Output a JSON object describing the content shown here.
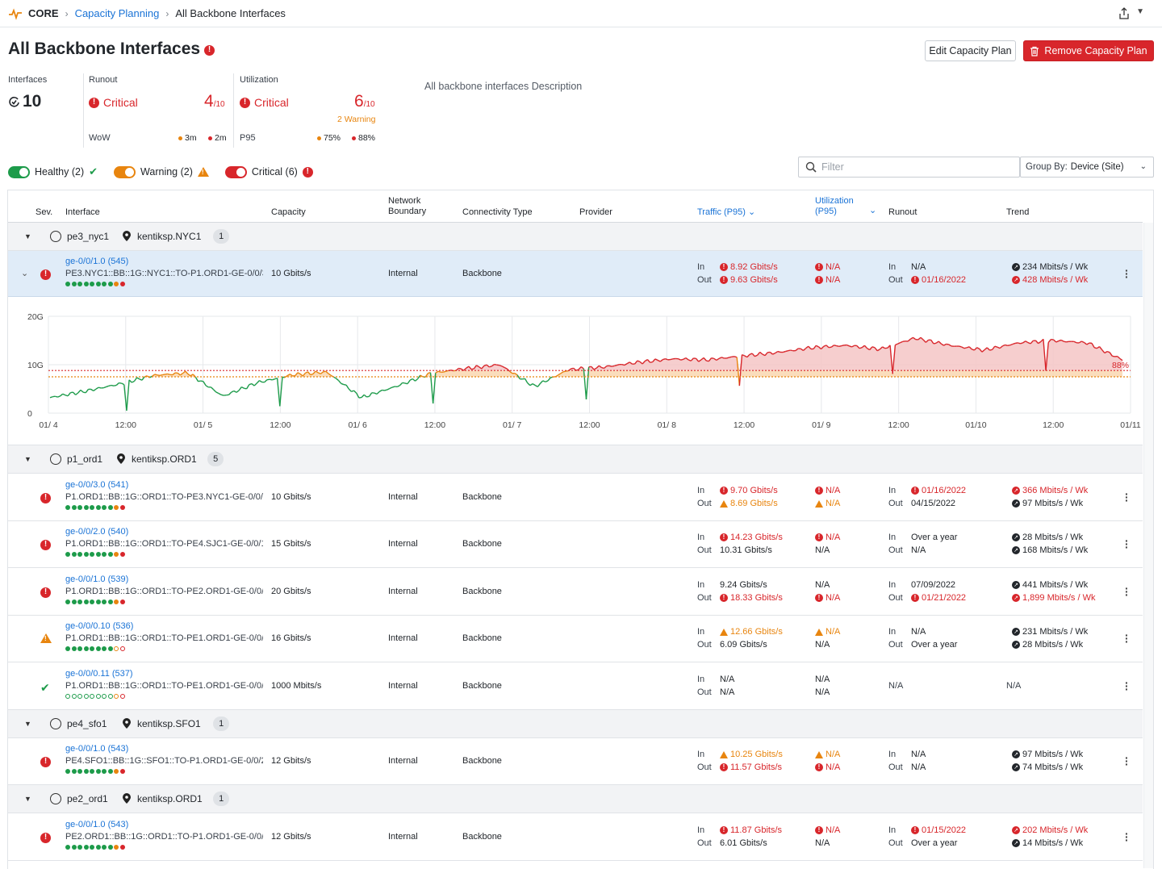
{
  "breadcrumb": {
    "root": "CORE",
    "section": "Capacity Planning",
    "current": "All Backbone Interfaces"
  },
  "header": {
    "title": "All Backbone Interfaces",
    "edit_button": "Edit Capacity Plan",
    "remove_button": "Remove Capacity Plan",
    "description": "All backbone interfaces Description"
  },
  "summary": {
    "interfaces_label": "Interfaces",
    "interfaces_count": "10",
    "runout_label": "Runout",
    "runout_status": "Critical",
    "runout_num": "4",
    "runout_den": "/10",
    "runout_sub": "WoW",
    "runout_a": "3m",
    "runout_b": "2m",
    "util_label": "Utilization",
    "util_status": "Critical",
    "util_num": "6",
    "util_den": "/10",
    "util_warning": "2 Warning",
    "util_sub": "P95",
    "util_a": "75%",
    "util_b": "88%"
  },
  "toggles": {
    "healthy": "Healthy (2)",
    "warning": "Warning (2)",
    "critical": "Critical (6)"
  },
  "filter": {
    "placeholder": "Filter",
    "groupby_label": "Group By:",
    "groupby_value": "Device (Site)"
  },
  "columns": {
    "sev": "Sev.",
    "interface": "Interface",
    "capacity": "Capacity",
    "nb1": "Network",
    "nb2": "Boundary",
    "conn": "Connectivity Type",
    "provider": "Provider",
    "traffic": "Traffic (P95)",
    "util1": "Utilization",
    "util2": "(P95)",
    "runout": "Runout",
    "trend": "Trend"
  },
  "labels": {
    "in": "In",
    "out": "Out"
  },
  "colors": {
    "critical": "#d8262b",
    "warning": "#e8850f",
    "healthy": "#1d9b4a",
    "link": "#1a73d6",
    "selected": "#e0ecf8"
  },
  "groups": [
    {
      "device": "pe3_nyc1",
      "site": "kentiksp.NYC1",
      "count": "1"
    },
    {
      "device": "p1_ord1",
      "site": "kentiksp.ORD1",
      "count": "5"
    },
    {
      "device": "pe4_sfo1",
      "site": "kentiksp.SFO1",
      "count": "1"
    },
    {
      "device": "pe2_ord1",
      "site": "kentiksp.ORD1",
      "count": "1"
    }
  ],
  "rows": [
    {
      "name": "ge-0/0/1.0 (545)",
      "desc": "PE3.NYC1::BB::1G::NYC1::TO-P1.ORD1-GE-0/0/3...",
      "capacity": "10 Gbits/s",
      "boundary": "Internal",
      "conn": "Backbone",
      "tin": "8.92 Gbits/s",
      "tout": "9.63 Gbits/s",
      "uin": "N/A",
      "uout": "N/A",
      "rin": "N/A",
      "rout": "01/16/2022",
      "trin": "234 Mbits/s / Wk",
      "trout": "428 Mbits/s / Wk"
    },
    {
      "name": "ge-0/0/3.0 (541)",
      "desc": "P1.ORD1::BB::1G::ORD1::TO-PE3.NYC1-GE-0/0/1...",
      "capacity": "10 Gbits/s",
      "boundary": "Internal",
      "conn": "Backbone",
      "tin": "9.70 Gbits/s",
      "tout": "8.69 Gbits/s",
      "uin": "N/A",
      "uout": "N/A",
      "rin": "01/16/2022",
      "rout": "04/15/2022",
      "trin": "366 Mbits/s / Wk",
      "trout": "97 Mbits/s / Wk"
    },
    {
      "name": "ge-0/0/2.0 (540)",
      "desc": "P1.ORD1::BB::1G::ORD1::TO-PE4.SJC1-GE-0/0/1:...",
      "capacity": "15 Gbits/s",
      "boundary": "Internal",
      "conn": "Backbone",
      "tin": "14.23 Gbits/s",
      "tout": "10.31 Gbits/s",
      "uin": "N/A",
      "uout": "N/A",
      "rin": "Over a year",
      "rout": "N/A",
      "trin": "28 Mbits/s / Wk",
      "trout": "168 Mbits/s / Wk"
    },
    {
      "name": "ge-0/0/1.0 (539)",
      "desc": "P1.ORD1::BB::1G::ORD1::TO-PE2.ORD1-GE-0/0/1...",
      "capacity": "20 Gbits/s",
      "boundary": "Internal",
      "conn": "Backbone",
      "tin": "9.24 Gbits/s",
      "tout": "18.33 Gbits/s",
      "uin": "N/A",
      "uout": "N/A",
      "rin": "07/09/2022",
      "rout": "01/21/2022",
      "trin": "441 Mbits/s / Wk",
      "trout": "1,899 Mbits/s / Wk"
    },
    {
      "name": "ge-0/0/0.10 (536)",
      "desc": "P1.ORD1::BB::1G::ORD1::TO-PE1.ORD1-GE-0/0/1:...",
      "capacity": "16 Gbits/s",
      "boundary": "Internal",
      "conn": "Backbone",
      "tin": "12.66 Gbits/s",
      "tout": "6.09 Gbits/s",
      "uin": "N/A",
      "uout": "N/A",
      "rin": "N/A",
      "rout": "Over a year",
      "trin": "231 Mbits/s / Wk",
      "trout": "28 Mbits/s / Wk"
    },
    {
      "name": "ge-0/0/0.11 (537)",
      "desc": "P1.ORD1::BB::1G::ORD1::TO-PE1.ORD1-GE-0/0/1:...",
      "capacity": "1000 Mbits/s",
      "boundary": "Internal",
      "conn": "Backbone",
      "tin": "N/A",
      "tout": "N/A",
      "uin": "N/A",
      "uout": "N/A",
      "runout": "N/A",
      "trend": "N/A"
    },
    {
      "name": "ge-0/0/1.0 (543)",
      "desc": "PE4.SFO1::BB::1G::SFO1::TO-P1.ORD1-GE-0/0/2...",
      "capacity": "12 Gbits/s",
      "boundary": "Internal",
      "conn": "Backbone",
      "tin": "10.25 Gbits/s",
      "tout": "11.57 Gbits/s",
      "uin": "N/A",
      "uout": "N/A",
      "rin": "N/A",
      "rout": "N/A",
      "trin": "97 Mbits/s / Wk",
      "trout": "74 Mbits/s / Wk"
    },
    {
      "name": "ge-0/0/1.0 (543)",
      "desc": "PE2.ORD1::BB::1G::ORD1::TO-P1.ORD1-GE-0/0/1...",
      "capacity": "12 Gbits/s",
      "boundary": "Internal",
      "conn": "Backbone",
      "tin": "11.87 Gbits/s",
      "tout": "6.01 Gbits/s",
      "uin": "N/A",
      "uout": "N/A",
      "rin": "01/15/2022",
      "rout": "Over a year",
      "trin": "202 Mbits/s / Wk",
      "trout": "14 Mbits/s / Wk"
    }
  ],
  "chart_data": {
    "type": "line",
    "y_tick_labels": [
      "20G",
      "10G",
      "0"
    ],
    "ylim": [
      0,
      20
    ],
    "x_tick_labels": [
      "01/ 4",
      "12:00",
      "01/ 5",
      "12:00",
      "01/ 6",
      "12:00",
      "01/ 7",
      "12:00",
      "01/ 8",
      "12:00",
      "01/ 9",
      "12:00",
      "01/10",
      "12:00",
      "01/11"
    ],
    "threshold_labels": [
      "88%"
    ],
    "thresholds": [
      8.8,
      7.5
    ],
    "series": [
      {
        "values": [
          3.2,
          4.5,
          6.0,
          7.8,
          8.3,
          3.5,
          6.3,
          7.9,
          8.5,
          3.2,
          5.5,
          8.2,
          9.2,
          10.0,
          5.5,
          9.0,
          9.5,
          10.5,
          11.2,
          11.0,
          11.8,
          12.5,
          13.5,
          14.0,
          13.2,
          15.5,
          14.0,
          13.0,
          14.5,
          15.0,
          14.5,
          11.0
        ]
      }
    ],
    "grid": true
  }
}
